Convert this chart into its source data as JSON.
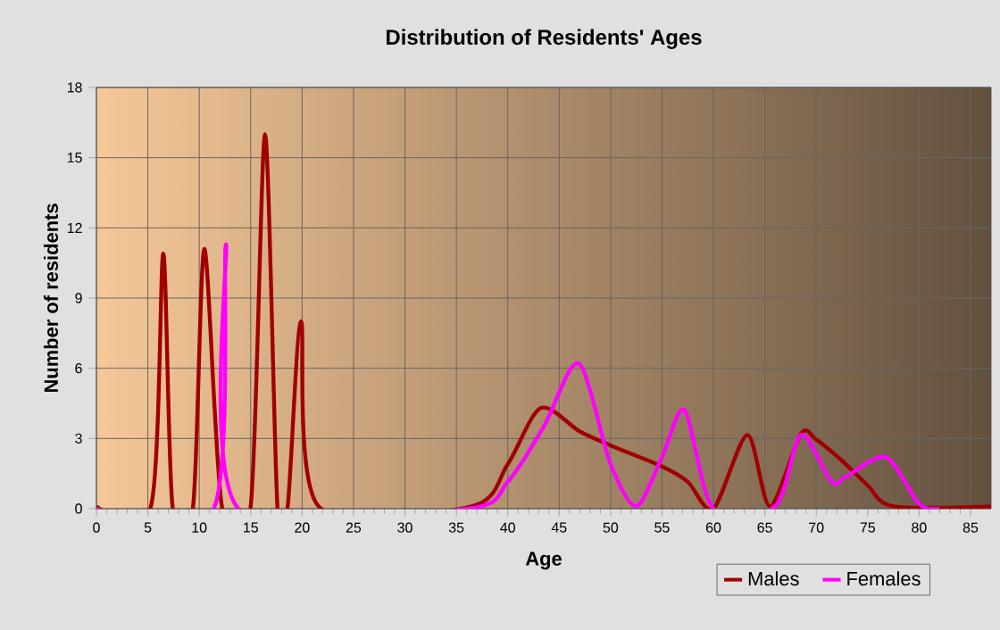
{
  "chart_data": {
    "type": "line",
    "title": "Distribution of Residents' Ages",
    "xlabel": "Age",
    "ylabel": "Number of residents",
    "xlim": [
      0,
      87
    ],
    "xticks": [
      0,
      5,
      10,
      15,
      20,
      25,
      30,
      35,
      40,
      45,
      50,
      55,
      60,
      65,
      70,
      75,
      80,
      85
    ],
    "ylim": [
      0,
      18
    ],
    "yticks": [
      0,
      3,
      6,
      9,
      12,
      15,
      18
    ],
    "grid": true,
    "legend": "bottom right",
    "marker": "none",
    "line_style": "solid",
    "series": [
      {
        "name": "Males",
        "color": "#a00000",
        "x": [
          0,
          5.3,
          6.5,
          7.4,
          9.4,
          10.5,
          12.2,
          15.0,
          16.4,
          17.6,
          18.6,
          19.9,
          21.6,
          36.5,
          40,
          43.2,
          47,
          50,
          55,
          57.5,
          60,
          63.3,
          65.5,
          68.5,
          70,
          72.5,
          75,
          77.5,
          87
        ],
        "values": [
          0.1,
          0.1,
          10.9,
          0.1,
          0.1,
          11.1,
          0.1,
          0.1,
          16.0,
          0.1,
          0.1,
          8.0,
          0.1,
          0.1,
          1.9,
          4.3,
          3.3,
          2.7,
          1.8,
          1.15,
          0,
          3.15,
          0.1,
          3.2,
          2.95,
          2.05,
          1.0,
          0.1,
          0.1
        ]
      },
      {
        "name": "Females",
        "color": "#ff00ff",
        "x": [
          0,
          11.4,
          12.6,
          13.8,
          36,
          40,
          43.5,
          46.9,
          50,
          52.5,
          55,
          57.2,
          60,
          66,
          68.5,
          71.5,
          73,
          76.8,
          80,
          82
        ],
        "values": [
          0,
          0,
          11.3,
          0,
          0,
          1.15,
          3.5,
          6.2,
          1.9,
          0.1,
          2.2,
          4.2,
          0,
          0.1,
          3.15,
          1.15,
          1.4,
          2.2,
          0.2,
          0
        ]
      }
    ]
  }
}
